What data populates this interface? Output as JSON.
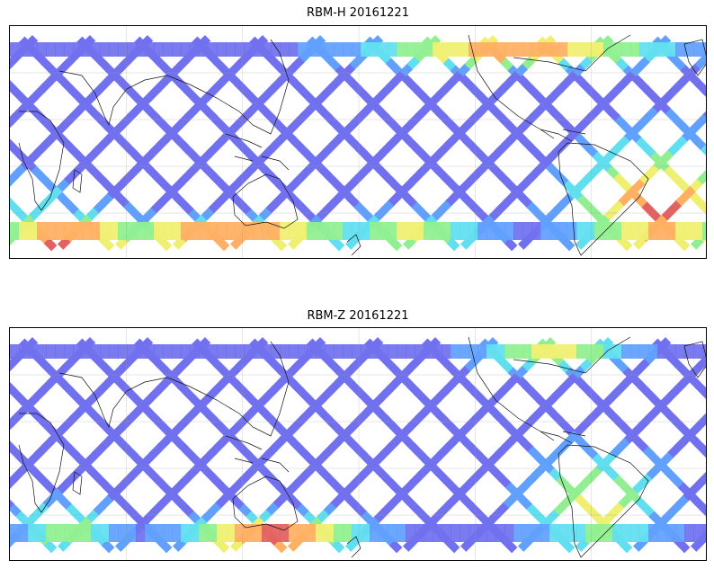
{
  "panels": [
    {
      "title": "RBM-H 20161221",
      "hot_regions": "south-west,south-east,north-east"
    },
    {
      "title": "RBM-Z 20161221",
      "hot_regions": "south-center,south-east-weak,north-east-weak"
    }
  ],
  "colormap": [
    "#6666ee",
    "#5599ff",
    "#55ddee",
    "#88ee88",
    "#eeee66",
    "#ffaa55",
    "#e05555"
  ],
  "grid": {
    "lon_lines": 6,
    "lat_lines": 5
  }
}
